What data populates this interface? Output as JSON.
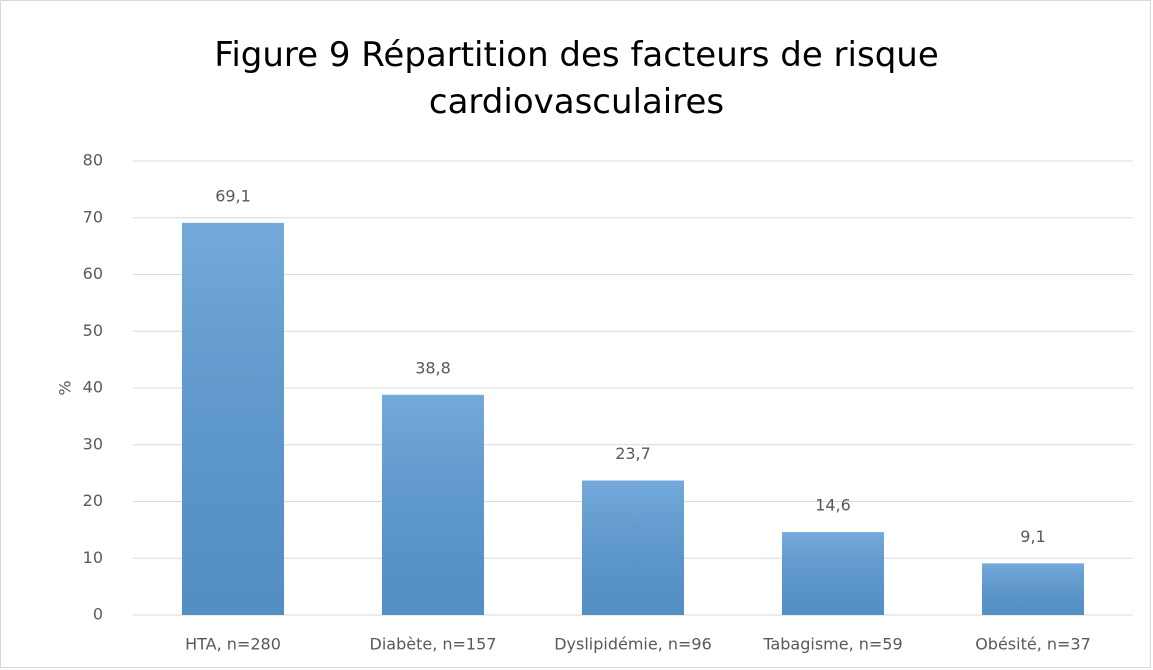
{
  "chart_data": {
    "type": "bar",
    "title": "Figure 9 Répartition des facteurs de risque cardiovasculaires",
    "y_label": "%",
    "categories": [
      "HTA, n=280",
      "Diabète, n=157",
      "Dyslipidémie, n=96",
      "Tabagisme, n=59",
      "Obésité, n=37"
    ],
    "values": [
      69.1,
      38.8,
      23.7,
      14.6,
      9.1
    ],
    "value_labels": [
      "69,1",
      "38,8",
      "23,7",
      "14,6",
      "9,1"
    ],
    "color": "#5b9bd5",
    "ylim": [
      0,
      80
    ],
    "yticks": [
      0,
      10,
      20,
      30,
      40,
      50,
      60,
      70,
      80
    ],
    "grid": true
  }
}
